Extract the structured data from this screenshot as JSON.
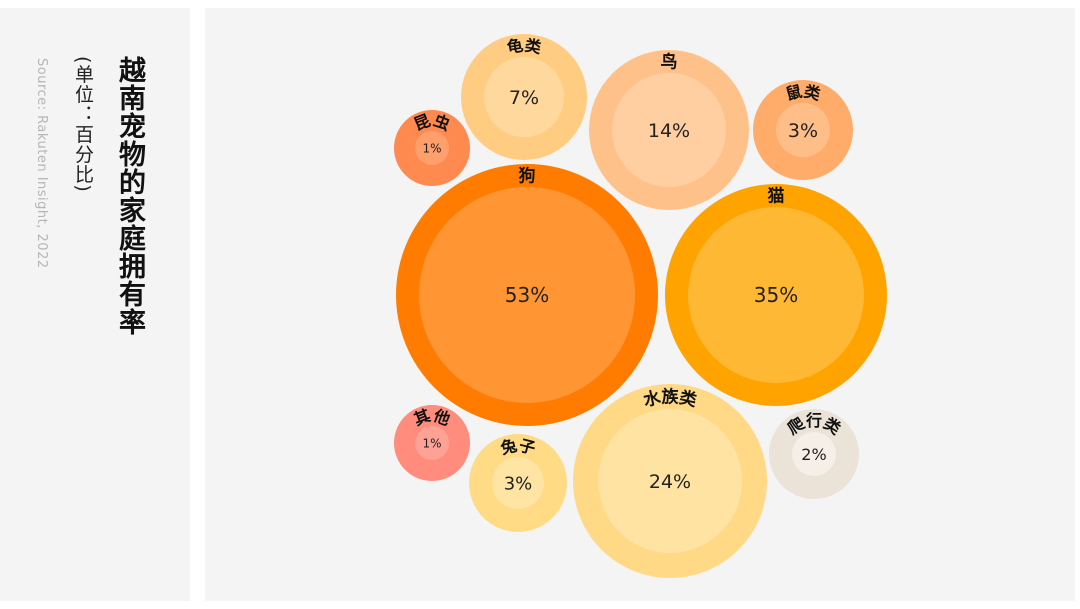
{
  "sidebar": {
    "title": "越南宠物的家庭拥有率",
    "unit": "(单位：百分比)",
    "source": "Source: Rakuten Insight, 2022"
  },
  "chart_data": {
    "type": "bubble",
    "title": "越南宠物的家庭拥有率",
    "unit": "(单位：百分比)",
    "items": [
      {
        "label": "狗",
        "value": 53,
        "value_label": "53%",
        "outer_color": "#ff7c00",
        "inner_color": "#ff9633"
      },
      {
        "label": "猫",
        "value": 35,
        "value_label": "35%",
        "outer_color": "#ffa300",
        "inner_color": "#ffb833"
      },
      {
        "label": "水族类",
        "value": 24,
        "value_label": "24%",
        "outer_color": "#ffd985",
        "inner_color": "#ffe3a3"
      },
      {
        "label": "鸟",
        "value": 14,
        "value_label": "14%",
        "outer_color": "#ffc18a",
        "inner_color": "#ffcfa2"
      },
      {
        "label": "龟类",
        "value": 7,
        "value_label": "7%",
        "outer_color": "#ffcc82",
        "inner_color": "#ffd89e"
      },
      {
        "label": "鼠类",
        "value": 3,
        "value_label": "3%",
        "outer_color": "#ffac6b",
        "inner_color": "#ffbe88"
      },
      {
        "label": "兔子",
        "value": 3,
        "value_label": "3%",
        "outer_color": "#ffdb85",
        "inner_color": "#ffe4a3"
      },
      {
        "label": "爬行类",
        "value": 2,
        "value_label": "2%",
        "outer_color": "#ece3d8",
        "inner_color": "#f5efe8"
      },
      {
        "label": "昆虫",
        "value": 1,
        "value_label": "1%",
        "outer_color": "#ff8a4f",
        "inner_color": "#ff9f6c"
      },
      {
        "label": "其他",
        "value": 1,
        "value_label": "1%",
        "outer_color": "#ff8c7c",
        "inner_color": "#ffa296"
      }
    ]
  }
}
